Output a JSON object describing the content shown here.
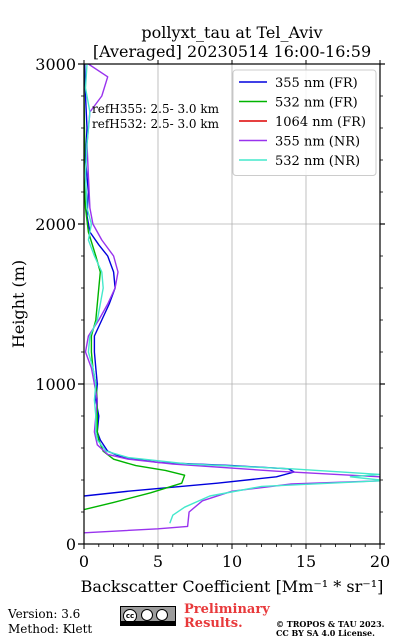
{
  "chart_data": {
    "type": "line",
    "title": "pollyxt_tau at Tel_Aviv",
    "subtitle": "[Averaged] 20230514 16:00-16:59",
    "xlabel": "Backscatter Coefficient [Mm⁻¹ * sr⁻¹]",
    "ylabel": "Height (m)",
    "xlim": [
      0,
      20
    ],
    "ylim": [
      0,
      3000
    ],
    "x_ticks": [
      0,
      5,
      10,
      15,
      20
    ],
    "y_ticks": [
      0,
      1000,
      2000,
      3000
    ],
    "grid": true,
    "legend_position": "top-right",
    "annotations": [
      "refH355:  2.5- 3.0 km",
      "refH532:  2.5- 3.0 km"
    ],
    "series": [
      {
        "name": "355 nm (FR)",
        "color": "#0000dd",
        "points": [
          [
            0.0,
            300
          ],
          [
            3,
            330
          ],
          [
            9,
            380
          ],
          [
            13,
            420
          ],
          [
            14.2,
            450
          ],
          [
            13.8,
            470
          ],
          [
            10,
            490
          ],
          [
            5,
            510
          ],
          [
            2.5,
            545
          ],
          [
            1.6,
            580
          ],
          [
            1.1,
            650
          ],
          [
            0.9,
            700
          ],
          [
            1.0,
            800
          ],
          [
            0.8,
            900
          ],
          [
            0.9,
            1000
          ],
          [
            0.8,
            1100
          ],
          [
            0.7,
            1200
          ],
          [
            0.7,
            1300
          ],
          [
            1.2,
            1400
          ],
          [
            1.7,
            1500
          ],
          [
            2.1,
            1600
          ],
          [
            2.0,
            1700
          ],
          [
            1.6,
            1800
          ],
          [
            1.0,
            1870
          ],
          [
            0.4,
            1950
          ],
          [
            0.2,
            2050
          ],
          [
            0.3,
            2200
          ],
          [
            0.1,
            2400
          ],
          [
            0.2,
            2600
          ],
          [
            0.1,
            2800
          ],
          [
            0.05,
            3000
          ]
        ]
      },
      {
        "name": "532 nm (FR)",
        "color": "#00b400",
        "points": [
          [
            0.0,
            215
          ],
          [
            2,
            260
          ],
          [
            4.5,
            320
          ],
          [
            6.6,
            380
          ],
          [
            6.8,
            430
          ],
          [
            5.5,
            460
          ],
          [
            3.5,
            490
          ],
          [
            2,
            530
          ],
          [
            1.3,
            580
          ],
          [
            1.0,
            650
          ],
          [
            0.9,
            700
          ],
          [
            0.9,
            800
          ],
          [
            0.9,
            900
          ],
          [
            0.8,
            1000
          ],
          [
            0.6,
            1100
          ],
          [
            0.5,
            1200
          ],
          [
            0.5,
            1300
          ],
          [
            0.8,
            1400
          ],
          [
            0.9,
            1500
          ],
          [
            1.0,
            1600
          ],
          [
            1.1,
            1700
          ],
          [
            0.8,
            1800
          ],
          [
            0.3,
            1950
          ],
          [
            0.1,
            2100
          ],
          [
            0.0,
            2300
          ],
          [
            0.05,
            2500
          ],
          [
            0.0,
            2800
          ],
          [
            0.0,
            3000
          ]
        ]
      },
      {
        "name": "1064 nm (FR)",
        "color": "#dd0000",
        "points": []
      },
      {
        "name": "355 nm (NR)",
        "color": "#9933ee",
        "points": [
          [
            0.0,
            70
          ],
          [
            5,
            95
          ],
          [
            7,
            110
          ],
          [
            7.1,
            200
          ],
          [
            8,
            270
          ],
          [
            10,
            330
          ],
          [
            14,
            375
          ],
          [
            20,
            395
          ],
          [
            20,
            420
          ],
          [
            13,
            455
          ],
          [
            6,
            500
          ],
          [
            3,
            530
          ],
          [
            1.6,
            560
          ],
          [
            0.9,
            620
          ],
          [
            0.7,
            700
          ],
          [
            0.8,
            800
          ],
          [
            0.9,
            900
          ],
          [
            0.7,
            1000
          ],
          [
            0.5,
            1100
          ],
          [
            0.1,
            1200
          ],
          [
            0.3,
            1300
          ],
          [
            1.0,
            1400
          ],
          [
            1.6,
            1500
          ],
          [
            2.1,
            1600
          ],
          [
            2.3,
            1700
          ],
          [
            2.0,
            1800
          ],
          [
            1.2,
            1900
          ],
          [
            0.6,
            2000
          ],
          [
            0.4,
            2100
          ],
          [
            0.3,
            2300
          ],
          [
            0.2,
            2500
          ],
          [
            0.4,
            2700
          ],
          [
            1.2,
            2800
          ],
          [
            1.6,
            2920
          ],
          [
            0.3,
            3000
          ]
        ]
      },
      {
        "name": "532 nm (NR)",
        "color": "#44e8cc",
        "points": [
          [
            5.8,
            130
          ],
          [
            6,
            180
          ],
          [
            6.8,
            230
          ],
          [
            8.5,
            300
          ],
          [
            12,
            360
          ],
          [
            20,
            395
          ],
          [
            20,
            400
          ],
          [
            18,
            420
          ],
          [
            20,
            435
          ],
          [
            14,
            470
          ],
          [
            7,
            500
          ],
          [
            3,
            540
          ],
          [
            1.5,
            580
          ],
          [
            0.9,
            650
          ],
          [
            0.8,
            700
          ],
          [
            0.8,
            800
          ],
          [
            0.7,
            900
          ],
          [
            0.8,
            1000
          ],
          [
            0.6,
            1100
          ],
          [
            0.3,
            1200
          ],
          [
            0.4,
            1300
          ],
          [
            0.9,
            1400
          ],
          [
            1.1,
            1500
          ],
          [
            1.3,
            1600
          ],
          [
            1.2,
            1700
          ],
          [
            0.7,
            1800
          ],
          [
            0.3,
            1900
          ],
          [
            0.5,
            2000
          ],
          [
            0.2,
            2100
          ],
          [
            0.1,
            2300
          ],
          [
            0.2,
            2500
          ],
          [
            0.4,
            2700
          ],
          [
            0.1,
            2850
          ],
          [
            0.2,
            3000
          ]
        ]
      }
    ]
  },
  "footer": {
    "version_line": "Version: 3.6",
    "method_line": "Method: Klett",
    "cc_badge_text": "cc",
    "preliminary_line1": "Preliminary",
    "preliminary_line2": "Results.",
    "license_line1": "© TROPOS & TAU 2023.",
    "license_line2": "CC BY SA 4.0 License."
  }
}
